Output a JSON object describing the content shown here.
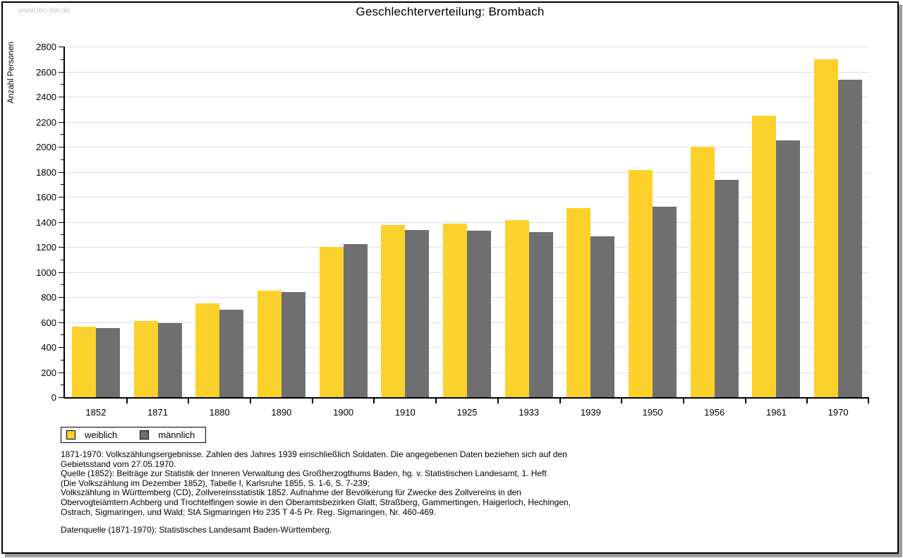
{
  "page": {
    "watermark": "www.leo-bw.de",
    "title": "Geschlechterverteilung: Brombach"
  },
  "chart_data": {
    "type": "bar",
    "title": "Geschlechterverteilung: Brombach",
    "xlabel": "",
    "ylabel": "Anzahl Personen",
    "categories": [
      "1852",
      "1871",
      "1880",
      "1890",
      "1900",
      "1910",
      "1925",
      "1933",
      "1939",
      "1950",
      "1956",
      "1961",
      "1970"
    ],
    "series": [
      {
        "name": "weiblich",
        "color": "#fcd12b",
        "values": [
          565,
          608,
          751,
          853,
          1199,
          1377,
          1386,
          1412,
          1509,
          1815,
          2000,
          2246,
          2697
        ]
      },
      {
        "name": "männlich",
        "color": "#6f6f6f",
        "values": [
          550,
          591,
          701,
          838,
          1222,
          1334,
          1327,
          1317,
          1287,
          1521,
          1734,
          2049,
          2533
        ]
      }
    ],
    "ylim": [
      0,
      2800
    ],
    "ytick_major": 200,
    "ytick_minor": 100,
    "grid": true,
    "grid_color": "#dcdcdc",
    "axis_color": "#000000",
    "legend_position": "bottom-left"
  },
  "legend": {
    "items": [
      {
        "label": "weiblich",
        "color": "#fcd12b"
      },
      {
        "label": "männlich",
        "color": "#6f6f6f"
      }
    ]
  },
  "footnotes": {
    "lines": [
      "1871-1970: Volkszählungsergebnisse. Zahlen des Jahres 1939 einschließlich Soldaten. Die angegebenen Daten beziehen sich auf den",
      "Gebietsstand vom 27.05.1970.",
      "Quelle (1852): Beiträge zur Statistik der Inneren Verwaltung des Großherzogthums Baden, hg. v. Statistischen Landesamt, 1. Heft",
      "(Die Volkszählung im Dezember 1852), Tabelle I, Karlsruhe 1855, S. 1-6, S. 7-239;",
      "Volkszählung in Württemberg (CD), Zollvereinsstatistik 1852. Aufnahme der Bevölkerung für Zwecke des Zollvereins in den",
      "Obervogteiämtern Achberg und Trochtelfingen sowie in den Oberamtsbezirken Glatt, Straßberg, Gammertingen, Haigerloch, Hechingen,",
      "Ostrach, Sigmaringen, und Wald; StA Sigmaringen Ho 235 T 4-5 Pr. Reg. Sigmaringen, Nr. 460-469."
    ],
    "datasource": "Datenquelle (1871-1970): Statistisches Landesamt Baden-Württemberg."
  }
}
